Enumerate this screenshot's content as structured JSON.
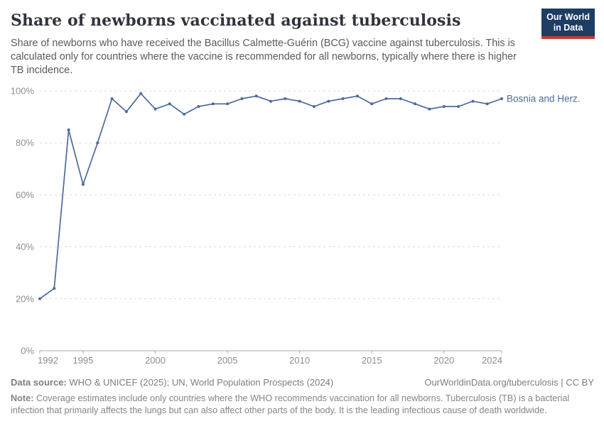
{
  "header": {
    "title": "Share of newborns vaccinated against tuberculosis",
    "subtitle": "Share of newborns who have received the Bacillus Calmette-Guérin (BCG) vaccine against tuberculosis. This is calculated only for countries where the vaccine is recommended for all newborns, typically where there is higher TB incidence.",
    "logo": {
      "line1": "Our World",
      "line2": "in Data",
      "bg_color": "#1d3d63",
      "accent_color": "#cf3b3b"
    }
  },
  "chart_data": {
    "type": "line",
    "title": "Share of newborns vaccinated against tuberculosis",
    "series": [
      {
        "name": "Bosnia and Herz.",
        "color": "#4c6a9c",
        "x": [
          1992,
          1993,
          1994,
          1995,
          1996,
          1997,
          1998,
          1999,
          2000,
          2001,
          2002,
          2003,
          2004,
          2005,
          2006,
          2007,
          2008,
          2009,
          2010,
          2011,
          2012,
          2013,
          2014,
          2015,
          2016,
          2017,
          2018,
          2019,
          2020,
          2021,
          2022,
          2023,
          2024
        ],
        "values": [
          20,
          24,
          85,
          64,
          80,
          97,
          92,
          99,
          93,
          95,
          91,
          94,
          95,
          95,
          97,
          98,
          96,
          97,
          96,
          94,
          96,
          97,
          98,
          95,
          97,
          97,
          95,
          93,
          94,
          94,
          96,
          95,
          97
        ]
      }
    ],
    "xlabel": "",
    "ylabel": "",
    "xlim": [
      1992,
      2024
    ],
    "ylim": [
      0,
      100
    ],
    "x_ticks": [
      1992,
      1995,
      2000,
      2005,
      2010,
      2015,
      2020,
      2024
    ],
    "y_ticks": [
      0,
      20,
      40,
      60,
      80,
      100
    ],
    "y_tick_suffix": "%",
    "grid": "horizontal-dashed",
    "legend_position": "end-of-line-label",
    "grid_color": "#dcdcdc",
    "axis_color": "#a8a8a8",
    "tick_color": "#8b8e94"
  },
  "footer": {
    "datasource_label": "Data source:",
    "datasource_text": " WHO & UNICEF (2025); UN, World Population Prospects (2024)",
    "link_text": "OurWorldinData.org/tuberculosis | CC BY",
    "note_label": "Note:",
    "note_text": " Coverage estimates include only countries where the WHO recommends vaccination for all newborns. Tuberculosis (TB) is a bacterial infection that primarily affects the lungs but can also affect other parts of the body. It is the leading infectious cause of death worldwide."
  }
}
